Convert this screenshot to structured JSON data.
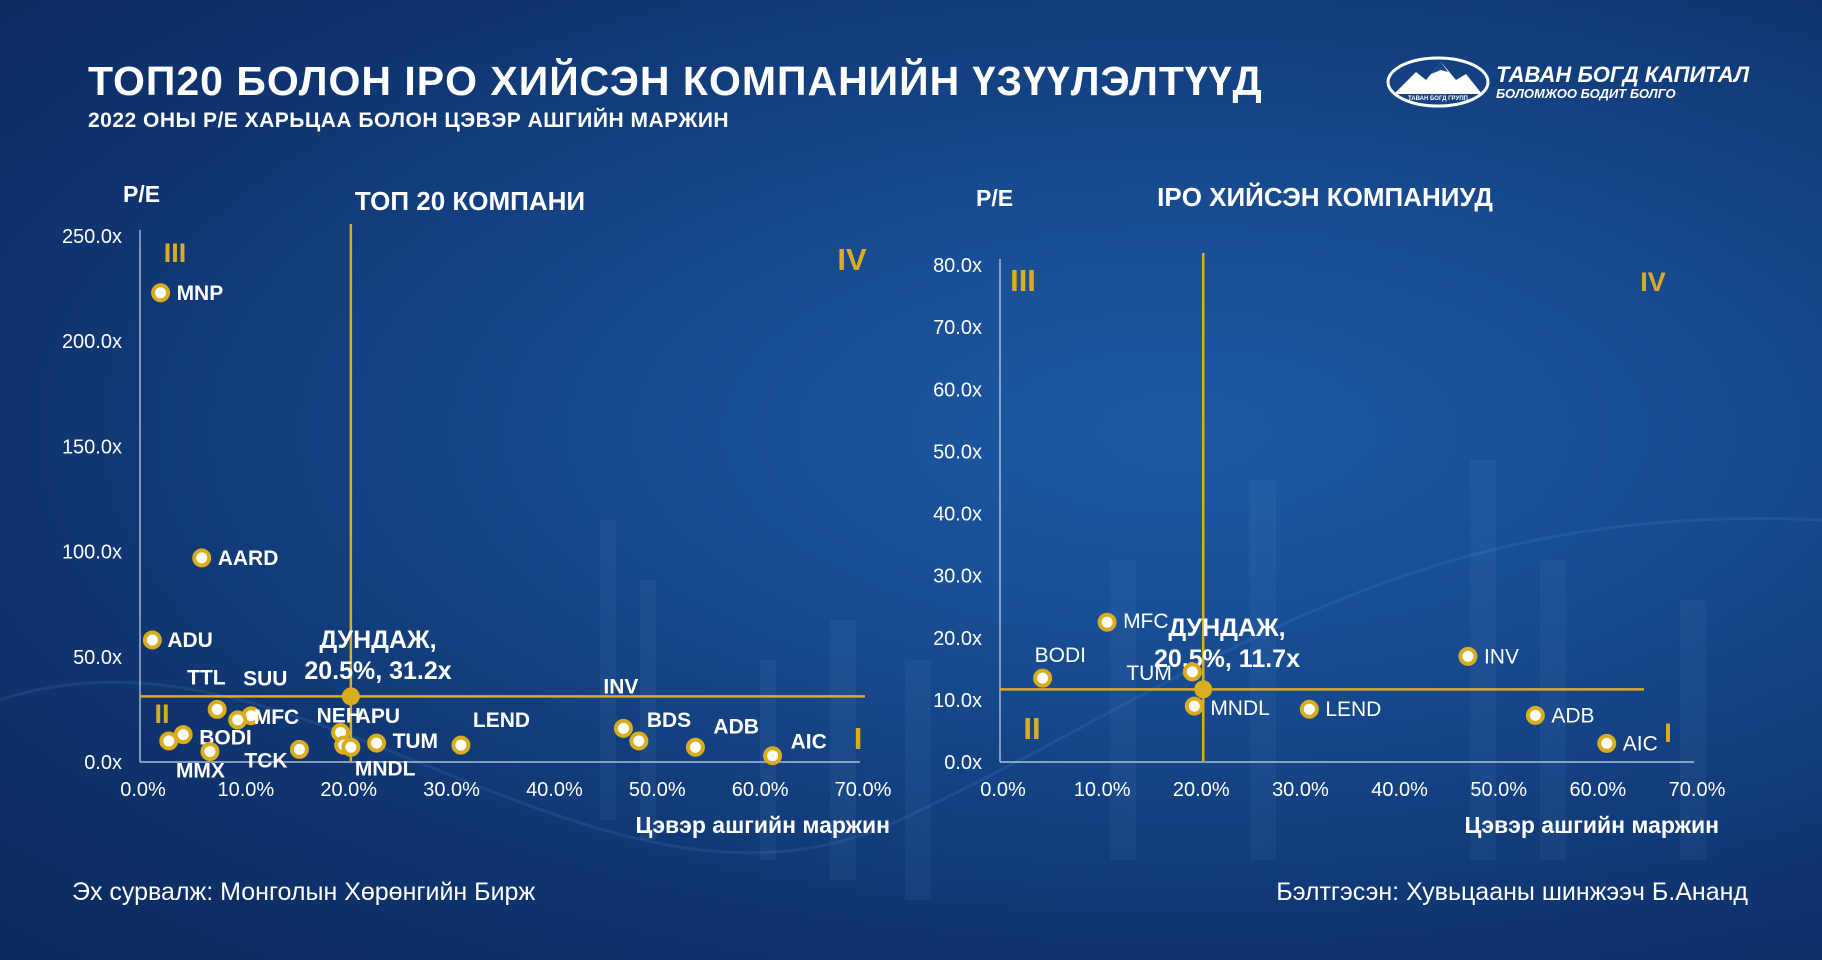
{
  "header": {
    "title": "ТОП20 БОЛОН IPO ХИЙСЭН КОМПАНИЙН ҮЗҮҮЛЭЛТҮҮД",
    "subtitle": "2022 ОНЫ P/E ХАРЬЦАА БОЛОН ЦЭВЭР АШГИЙН МАРЖИН"
  },
  "logo": {
    "name": "ТАВАН БОГД КАПИТАЛ",
    "tagline": "БОЛОМЖОО БОДИТ БОЛГО",
    "emblem_text": "ТАВАН БОГД ГРУПП"
  },
  "footer": {
    "source": "Эх сурвалж: Монголын Хөрөнгийн Бирж",
    "prepared_by": "Бэлтгэсэн: Хувьцааны шинжээч Б.Ананд"
  },
  "colors": {
    "accent": "#d9ad1d",
    "background": "#14468a",
    "text": "#ffffff"
  },
  "chart_data": [
    {
      "type": "scatter",
      "title": "ТОП 20 КОМПАНИ",
      "xlabel": "Цэвэр ашгийн маржин",
      "ylabel": "P/E",
      "xlim": [
        0,
        70
      ],
      "ylim": [
        0,
        250
      ],
      "xticks": [
        "0.0%",
        "10.0%",
        "20.0%",
        "30.0%",
        "40.0%",
        "50.0%",
        "60.0%",
        "70.0%"
      ],
      "yticks": [
        "0.0x",
        "50.0x",
        "100.0x",
        "150.0x",
        "200.0x",
        "250.0x"
      ],
      "quadrants": [
        "III",
        "IV",
        "II",
        "I"
      ],
      "average": {
        "label_line1": "ДУНДАЖ,",
        "label_line2": "20.5%, 31.2x",
        "x": 20.5,
        "y": 31.2
      },
      "points": [
        {
          "label": "MNP",
          "x": 2.0,
          "y": 223
        },
        {
          "label": "AARD",
          "x": 6.0,
          "y": 97
        },
        {
          "label": "ADU",
          "x": 1.2,
          "y": 58
        },
        {
          "label": "TTL",
          "x": 7.5,
          "y": 25
        },
        {
          "label": "SUU",
          "x": 10.8,
          "y": 22
        },
        {
          "label": "MFC",
          "x": 9.5,
          "y": 20
        },
        {
          "label": "BODI",
          "x": 4.2,
          "y": 13
        },
        {
          "label": "MMX",
          "x": 6.8,
          "y": 5
        },
        {
          "label": "",
          "x": 2.8,
          "y": 10
        },
        {
          "label": "TCK",
          "x": 15.5,
          "y": 6
        },
        {
          "label": "NEH",
          "x": 19.5,
          "y": 14
        },
        {
          "label": "APU",
          "x": 19.8,
          "y": 8
        },
        {
          "label": "MNDL",
          "x": 20.5,
          "y": 7
        },
        {
          "label": "TUM",
          "x": 23.0,
          "y": 9
        },
        {
          "label": "LEND",
          "x": 31.2,
          "y": 8
        },
        {
          "label": "INV",
          "x": 47.0,
          "y": 16
        },
        {
          "label": "BDS",
          "x": 48.5,
          "y": 10
        },
        {
          "label": "ADB",
          "x": 54.0,
          "y": 7
        },
        {
          "label": "AIC",
          "x": 61.5,
          "y": 3
        }
      ]
    },
    {
      "type": "scatter",
      "title": "IPO ХИЙСЭН КОМПАНИУД",
      "xlabel": "Цэвэр ашгийн маржин",
      "ylabel": "P/E",
      "xlim": [
        0,
        70
      ],
      "ylim": [
        0,
        80
      ],
      "xticks": [
        "0.0%",
        "10.0%",
        "20.0%",
        "30.0%",
        "40.0%",
        "50.0%",
        "60.0%",
        "70.0%"
      ],
      "yticks": [
        "0.0x",
        "10.0x",
        "20.0x",
        "30.0x",
        "40.0x",
        "50.0x",
        "60.0x",
        "70.0x",
        "80.0x"
      ],
      "quadrants": [
        "III",
        "IV",
        "II",
        "I"
      ],
      "average": {
        "label_line1": "ДУНДАЖ,",
        "label_line2": "20.5%, 11.7x",
        "x": 20.5,
        "y": 11.7
      },
      "points": [
        {
          "label": "BODI",
          "x": 4.3,
          "y": 13.5
        },
        {
          "label": "MFC",
          "x": 10.8,
          "y": 22.5
        },
        {
          "label": "TUM",
          "x": 19.4,
          "y": 14.5
        },
        {
          "label": "MNDL",
          "x": 19.6,
          "y": 9.0
        },
        {
          "label": "LEND",
          "x": 31.2,
          "y": 8.5
        },
        {
          "label": "INV",
          "x": 47.2,
          "y": 17.0
        },
        {
          "label": "ADB",
          "x": 54.0,
          "y": 7.5
        },
        {
          "label": "AIC",
          "x": 61.2,
          "y": 3.0
        }
      ]
    }
  ]
}
